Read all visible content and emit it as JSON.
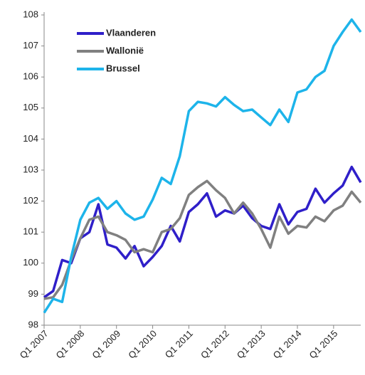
{
  "chart_data": {
    "type": "line",
    "categories": [
      "Q1 2007",
      null,
      null,
      null,
      "Q1 2008",
      null,
      null,
      null,
      "Q1 2009",
      null,
      null,
      null,
      "Q1 2010",
      null,
      null,
      null,
      "Q1 2011",
      null,
      null,
      null,
      "Q1 2012",
      null,
      null,
      null,
      "Q1 2013",
      null,
      null,
      null,
      "Q1 2014",
      null,
      null,
      null,
      "Q1 2015",
      null,
      null,
      null
    ],
    "series": [
      {
        "name": "Vlaanderen",
        "color": "#2f1fc9",
        "values": [
          98.9,
          99.1,
          100.1,
          100.0,
          100.8,
          101.0,
          101.9,
          100.6,
          100.5,
          100.15,
          100.55,
          99.9,
          100.2,
          100.55,
          101.2,
          100.7,
          101.65,
          101.9,
          102.25,
          101.5,
          101.7,
          101.6,
          101.85,
          101.45,
          101.2,
          101.1,
          101.9,
          101.25,
          101.65,
          101.75,
          102.4,
          101.95,
          102.25,
          102.5,
          103.1,
          102.6
        ]
      },
      {
        "name": "Wallonië",
        "color": "#808080",
        "values": [
          98.85,
          98.9,
          99.3,
          100.1,
          100.8,
          101.4,
          101.5,
          101.0,
          100.9,
          100.75,
          100.35,
          100.45,
          100.35,
          101.0,
          101.1,
          101.45,
          102.2,
          102.45,
          102.65,
          102.35,
          102.1,
          101.6,
          101.95,
          101.6,
          101.1,
          100.5,
          101.5,
          100.95,
          101.2,
          101.15,
          101.5,
          101.35,
          101.7,
          101.85,
          102.3,
          101.95
        ]
      },
      {
        "name": "Brussel",
        "color": "#1db4ea",
        "values": [
          98.4,
          98.85,
          98.75,
          100.2,
          101.4,
          101.95,
          102.1,
          101.75,
          102.0,
          101.6,
          101.4,
          101.5,
          102.05,
          102.75,
          102.55,
          103.45,
          104.9,
          105.2,
          105.15,
          105.05,
          105.35,
          105.1,
          104.9,
          104.95,
          104.7,
          104.45,
          104.95,
          104.55,
          105.5,
          105.6,
          106.0,
          106.2,
          107.0,
          107.45,
          107.85,
          107.45
        ]
      }
    ],
    "ylim": [
      98,
      108
    ],
    "yticks": [
      98,
      99,
      100,
      101,
      102,
      103,
      104,
      105,
      106,
      107,
      108
    ],
    "legend": "upper left",
    "grid": false
  }
}
